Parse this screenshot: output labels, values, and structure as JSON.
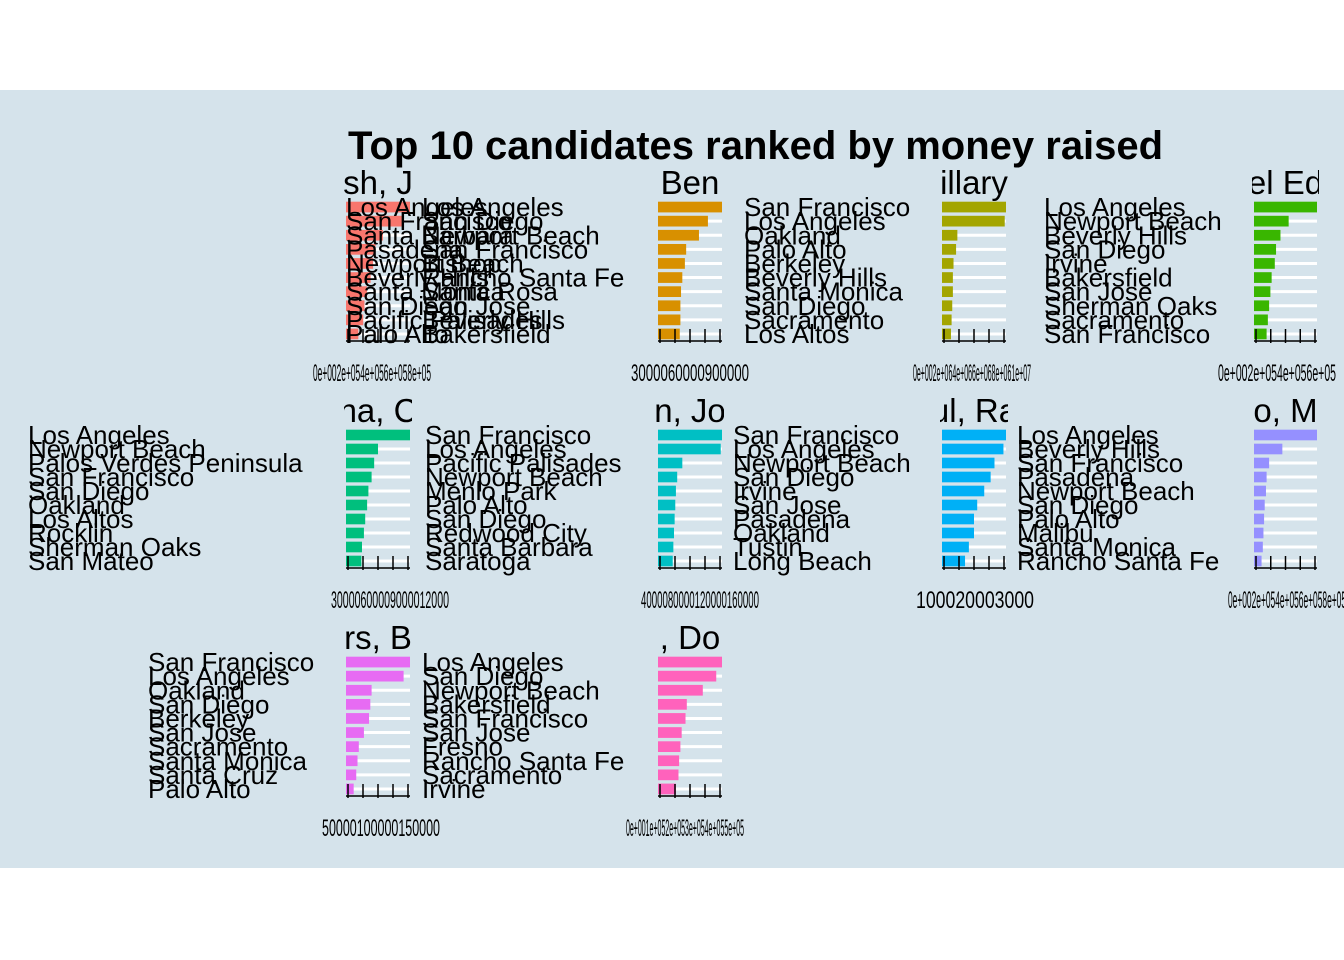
{
  "colors": {
    "panel_background": "#d5e3eb",
    "page_background": "#ffffff",
    "grid": "#ffffff",
    "series": [
      "#F8766D",
      "#D89000",
      "#A3A500",
      "#39B600",
      "#00BF7D",
      "#00BFC4",
      "#00B0F6",
      "#9590FF",
      "#E76BF3",
      "#FF62BC"
    ]
  },
  "chart_data": {
    "type": "bar",
    "orientation": "horizontal",
    "title": "Top 10 candidates ranked by money raised",
    "facet_layout": {
      "rows": 3,
      "cols": 4
    },
    "grid": true,
    "legend": "none",
    "panels": [
      {
        "strip": "sh, J",
        "categories": [
          "Los Angeles",
          "San Francisco",
          "Santa Barbara",
          "Pasadena",
          "Newport Beach",
          "Beverly Hills",
          "Santa Monica",
          "San Diego",
          "Pacific Palisades",
          "Palo Alto"
        ],
        "values": [
          2.6,
          2.35,
          1.5,
          1.2,
          1.1,
          1.0,
          0.85,
          0.75,
          0.7,
          0.5
        ],
        "xlim": [
          0,
          2.6
        ],
        "x_tick_labels": "0e+002e+054e+056e+058e+05"
      },
      {
        "strip": "Ben",
        "categories": [
          "Los Angeles",
          "San Diego",
          "Newport Beach",
          "San Francisco",
          "Bishop",
          "Rancho Santa Fe",
          "Santa Rosa",
          "San Jose",
          "Beverly Hills",
          "Bakersfield"
        ],
        "values": [
          100,
          78,
          64,
          44,
          42,
          38,
          36,
          35,
          35,
          34
        ],
        "xlim": [
          0,
          100
        ],
        "x_tick_labels": "3000060000900000"
      },
      {
        "strip": "illary",
        "categories": [
          "San Francisco",
          "Los Angeles",
          "Oakland",
          "Palo Alto",
          "Berkeley",
          "Beverly Hills",
          "Santa Monica",
          "San Diego",
          "Sacramento",
          "Los Altos"
        ],
        "values": [
          100,
          98,
          24,
          22,
          18,
          17,
          17,
          16,
          15,
          14
        ],
        "xlim": [
          0,
          100
        ],
        "x_tick_labels": "0e+002e+064e+066e+068e+061e+07"
      },
      {
        "strip": "el Ed",
        "categories": [
          "Los Angeles",
          "Newport Beach",
          "Beverly Hills",
          "San Diego",
          "Irvine",
          "Bakersfield",
          "San Jose",
          "Sherman Oaks",
          "Sacramento",
          "San Francisco"
        ],
        "values": [
          100,
          55,
          42,
          35,
          33,
          28,
          26,
          24,
          22,
          20
        ],
        "xlim": [
          0,
          100
        ],
        "x_tick_labels": "0e+002e+054e+056e+05"
      },
      {
        "strip": "na, C",
        "categories": [
          "Los Angeles",
          "Newport Beach",
          "Palos Verdes Peninsula",
          "San Francisco",
          "San Diego",
          "Oakland",
          "Los Altos",
          "Rocklin",
          "Sherman Oaks",
          "San Mateo"
        ],
        "values": [
          100,
          50,
          44,
          40,
          35,
          33,
          30,
          28,
          25,
          24
        ],
        "xlim": [
          0,
          100
        ],
        "x_tick_labels": "30000600009000012000"
      },
      {
        "strip": "n, Jo",
        "categories": [
          "San Francisco",
          "Los Angeles",
          "Pacific Palisades",
          "Newport Beach",
          "Menlo Park",
          "Palo Alto",
          "San Diego",
          "Redwood City",
          "Santa Barbara",
          "Saratoga"
        ],
        "values": [
          100,
          98,
          38,
          30,
          28,
          27,
          26,
          25,
          24,
          23
        ],
        "xlim": [
          0,
          100
        ],
        "x_tick_labels": "4000080000120000160000"
      },
      {
        "strip": "ul, Ra",
        "categories": [
          "San Francisco",
          "Los Angeles",
          "Newport Beach",
          "San Diego",
          "Irvine",
          "San Jose",
          "Pasadena",
          "Oakland",
          "Tustin",
          "Long Beach"
        ],
        "values": [
          100,
          96,
          82,
          76,
          66,
          55,
          50,
          50,
          42,
          36
        ],
        "xlim": [
          0,
          100
        ],
        "x_tick_labels": "100020003000"
      },
      {
        "strip": "o, M",
        "categories": [
          "Los Angeles",
          "Beverly Hills",
          "San Francisco",
          "Pasadena",
          "Newport Beach",
          "San Diego",
          "Palo Alto",
          "Malibu",
          "Santa Monica",
          "Rancho Santa Fe"
        ],
        "values": [
          100,
          45,
          24,
          20,
          19,
          17,
          16,
          15,
          14,
          12
        ],
        "xlim": [
          0,
          100
        ],
        "x_tick_labels": "0e+002e+054e+056e+058e+05"
      },
      {
        "strip": "rs, B",
        "categories": [
          "San Francisco",
          "Los Angeles",
          "Oakland",
          "San Diego",
          "Berkeley",
          "San Jose",
          "Sacramento",
          "Santa Monica",
          "Santa Cruz",
          "Palo Alto"
        ],
        "values": [
          100,
          90,
          40,
          38,
          36,
          28,
          20,
          18,
          16,
          12
        ],
        "xlim": [
          0,
          100
        ],
        "x_tick_labels": "50000100000150000"
      },
      {
        "strip": ", Do",
        "categories": [
          "Los Angeles",
          "San Diego",
          "Newport Beach",
          "Bakersfield",
          "San Francisco",
          "San Jose",
          "Fresno",
          "Rancho Santa Fe",
          "Sacramento",
          "Irvine"
        ],
        "values": [
          100,
          91,
          70,
          45,
          43,
          37,
          35,
          33,
          32,
          28
        ],
        "xlim": [
          0,
          100
        ],
        "x_tick_labels": "0e+001e+052e+053e+054e+055e+05"
      }
    ]
  }
}
